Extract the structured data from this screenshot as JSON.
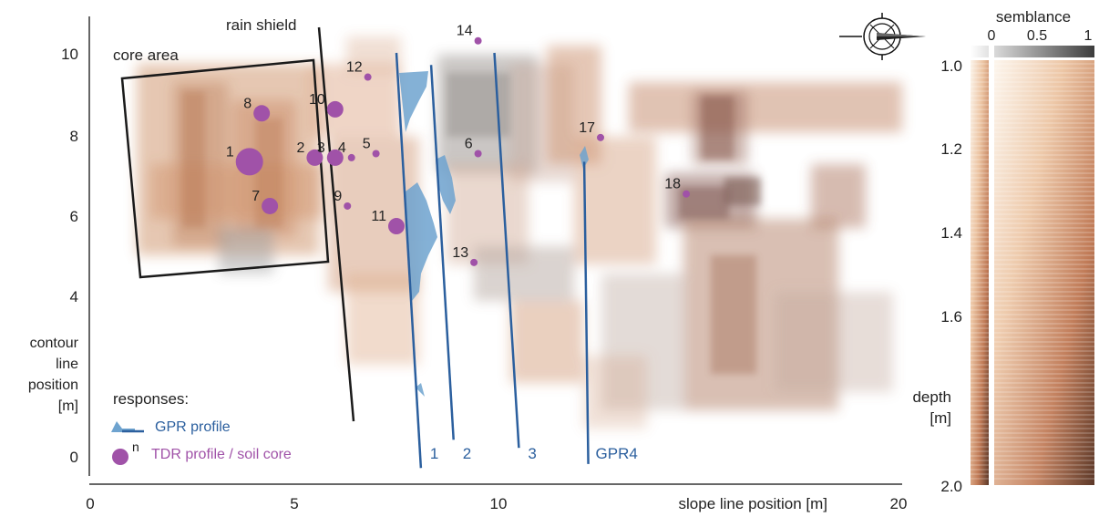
{
  "map": {
    "x_axis": {
      "label": "slope line position [m]",
      "ticks": [
        "0",
        "5",
        "10",
        "20"
      ],
      "range": [
        0,
        20
      ]
    },
    "y_axis": {
      "label_lines": [
        "contour",
        "line",
        "position",
        "[m]"
      ],
      "ticks": [
        "0",
        "4",
        "6",
        "8",
        "10"
      ],
      "range": [
        -0.3,
        11
      ]
    },
    "annotations": {
      "rain_shield": "rain shield",
      "core_area": "core area"
    },
    "legend": {
      "title": "responses:",
      "gpr_label": "GPR profile",
      "tdr_label": "TDR profile / soil core",
      "tdr_superscript": "n"
    },
    "gpr_profiles": [
      {
        "label": "1",
        "from": [
          7.5,
          10.0
        ],
        "to": [
          8.1,
          -0.3
        ]
      },
      {
        "label": "2",
        "from": [
          8.35,
          9.7
        ],
        "to": [
          8.9,
          0.4
        ]
      },
      {
        "label": "3",
        "from": [
          9.9,
          10.0
        ],
        "to": [
          10.5,
          0.2
        ]
      },
      {
        "label": "GPR4",
        "from": [
          12.1,
          7.3
        ],
        "to": [
          12.2,
          -0.2
        ]
      }
    ],
    "tdr_points": [
      {
        "label": "1",
        "x": 3.9,
        "y": 7.3,
        "size": 3
      },
      {
        "label": "2",
        "x": 5.5,
        "y": 7.4,
        "size": 2
      },
      {
        "label": "3",
        "x": 6.0,
        "y": 7.4,
        "size": 2
      },
      {
        "label": "4",
        "x": 6.4,
        "y": 7.4,
        "size": 1
      },
      {
        "label": "5",
        "x": 7.0,
        "y": 7.5,
        "size": 1
      },
      {
        "label": "6",
        "x": 9.5,
        "y": 7.5,
        "size": 1
      },
      {
        "label": "7",
        "x": 4.4,
        "y": 6.2,
        "size": 2
      },
      {
        "label": "8",
        "x": 4.2,
        "y": 8.5,
        "size": 2
      },
      {
        "label": "9",
        "x": 6.3,
        "y": 6.2,
        "size": 1
      },
      {
        "label": "10",
        "x": 6.0,
        "y": 8.6,
        "size": 2
      },
      {
        "label": "11",
        "x": 7.5,
        "y": 5.7,
        "size": 2
      },
      {
        "label": "12",
        "x": 6.8,
        "y": 9.4,
        "size": 1
      },
      {
        "label": "13",
        "x": 9.4,
        "y": 4.8,
        "size": 1
      },
      {
        "label": "14",
        "x": 9.5,
        "y": 10.3,
        "size": 1
      },
      {
        "label": "17",
        "x": 12.5,
        "y": 7.9,
        "size": 1
      },
      {
        "label": "18",
        "x": 14.6,
        "y": 6.5,
        "size": 1
      }
    ]
  },
  "depth_scale": {
    "label_lines": [
      "depth",
      "[m]"
    ],
    "ticks": [
      "1.0",
      "1.2",
      "1.4",
      "1.6",
      "2.0"
    ],
    "range": [
      1.0,
      2.0
    ]
  },
  "semblance_scale": {
    "label": "semblance",
    "ticks": [
      "0",
      "0.5",
      "1"
    ]
  },
  "icons": {
    "compass": "compass-rose-icon"
  },
  "colors": {
    "tdr": "#a052a8",
    "gpr_line": "#2b5f9e",
    "gpr_fill": "#6ea3cf",
    "soil_dark": "#6b4436",
    "soil_mid": "#c98358",
    "gray_patch": "#8c8c8c"
  }
}
